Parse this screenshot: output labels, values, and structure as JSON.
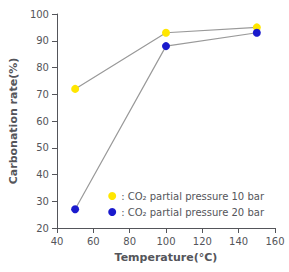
{
  "chart_data": {
    "type": "line",
    "xlabel": "Temperature(°C)",
    "ylabel": "Carbonation rate(%)",
    "x": [
      50,
      100,
      150
    ],
    "series": [
      {
        "name": ": CO₂ partial pressure 10 bar",
        "color": "#FFE600",
        "marker": "circle",
        "values": [
          72,
          93,
          95
        ]
      },
      {
        "name": ": CO₂ partial pressure 20 bar",
        "color": "#1a1acd",
        "marker": "circle",
        "values": [
          27,
          88,
          93
        ]
      }
    ],
    "xlim": [
      40,
      160
    ],
    "xticks": [
      40,
      60,
      80,
      100,
      120,
      140,
      160
    ],
    "ylim": [
      20,
      100
    ],
    "yticks": [
      20,
      30,
      40,
      50,
      60,
      70,
      80,
      90,
      100
    ],
    "grid": false,
    "legend": "lower right"
  }
}
